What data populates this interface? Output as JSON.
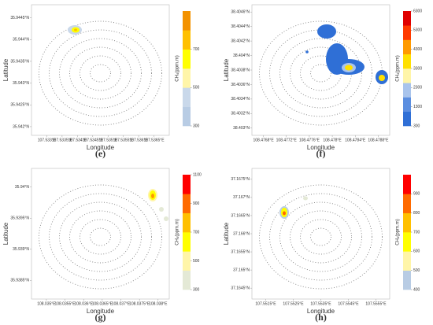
{
  "chart_data": [
    {
      "type": "map",
      "panel": "(e)",
      "xlabel": "Longitude",
      "ylabel": "Latitude",
      "colorbar_label": "CH₄(ppm.m)",
      "xlim": [
        107.5325,
        107.537
      ],
      "ylim": [
        35.9418,
        35.9448
      ],
      "xticks": [
        {
          "value": 107.533,
          "label": "107.533°E"
        },
        {
          "value": 107.5335,
          "label": "107.5335°E"
        },
        {
          "value": 107.534,
          "label": "107.534°E"
        },
        {
          "value": 107.5345,
          "label": "107.5345°E"
        },
        {
          "value": 107.535,
          "label": "107.535°E"
        },
        {
          "value": 107.5355,
          "label": "107.5355°E"
        },
        {
          "value": 107.536,
          "label": "107.536°E"
        },
        {
          "value": 107.5365,
          "label": "107.5365°E"
        }
      ],
      "yticks": [
        {
          "value": 35.9445,
          "label": "35.9445°N"
        },
        {
          "value": 35.944,
          "label": "35.944°N"
        },
        {
          "value": 35.9435,
          "label": "35.9435°N"
        },
        {
          "value": 35.943,
          "label": "35.943°N"
        },
        {
          "value": 35.9425,
          "label": "35.9425°N"
        },
        {
          "value": 35.942,
          "label": "35.942°N"
        }
      ],
      "clim": [
        300,
        900
      ],
      "cticks": [
        300,
        500,
        700
      ],
      "colors": [
        "#b8cce4",
        "#c9d8ea",
        "#fff5a8",
        "#ffff00",
        "#ffc000",
        "#f39200"
      ]
    },
    {
      "type": "map",
      "panel": "(f)",
      "xlabel": "Longitude",
      "ylabel": "Latitude",
      "colorbar_label": "CH₄(ppm.m)",
      "xlim": [
        108.4766,
        108.479
      ],
      "ylim": [
        38.4029,
        38.4047
      ],
      "xticks": [
        {
          "value": 108.4768,
          "label": "108.4768°E"
        },
        {
          "value": 108.4772,
          "label": "108.4772°E"
        },
        {
          "value": 108.4776,
          "label": "108.4776°E"
        },
        {
          "value": 108.478,
          "label": "108.478°E"
        },
        {
          "value": 108.4784,
          "label": "108.4784°E"
        },
        {
          "value": 108.4788,
          "label": "108.4788°E"
        }
      ],
      "yticks": [
        {
          "value": 38.4046,
          "label": "38.4046°N"
        },
        {
          "value": 38.4044,
          "label": "38.4044°N"
        },
        {
          "value": 38.4042,
          "label": "38.4042°N"
        },
        {
          "value": 38.404,
          "label": "38.404°N"
        },
        {
          "value": 38.4038,
          "label": "38.4038°N"
        },
        {
          "value": 38.4036,
          "label": "38.4036°N"
        },
        {
          "value": 38.4034,
          "label": "38.4034°N"
        },
        {
          "value": 38.4032,
          "label": "38.4032°N"
        },
        {
          "value": 38.403,
          "label": "38.403°N"
        }
      ],
      "clim": [
        300,
        6300
      ],
      "cticks": [
        300,
        1300,
        2300,
        3300,
        4300,
        5300,
        6300
      ],
      "colors": [
        "#2f6fd6",
        "#5b8ee0",
        "#a9c4ec",
        "#fff5a8",
        "#ffe000",
        "#ff9a00",
        "#ff3a00",
        "#e00000"
      ]
    },
    {
      "type": "map",
      "panel": "(g)",
      "xlabel": "Longitude",
      "ylabel": "Latitude",
      "colorbar_label": "CH₄(ppm.m)",
      "xlim": [
        108.0346,
        108.0383
      ],
      "ylim": [
        35.9382,
        35.9403
      ],
      "xticks": [
        {
          "value": 108.035,
          "label": "108.035°E"
        },
        {
          "value": 108.0355,
          "label": "108.0355°E"
        },
        {
          "value": 108.036,
          "label": "108.036°E"
        },
        {
          "value": 108.0365,
          "label": "108.0365°E"
        },
        {
          "value": 108.037,
          "label": "108.037°E"
        },
        {
          "value": 108.0375,
          "label": "108.0375°E"
        },
        {
          "value": 108.038,
          "label": "108.038°E"
        }
      ],
      "yticks": [
        {
          "value": 35.94,
          "label": "35.94°N"
        },
        {
          "value": 35.9395,
          "label": "35.9395°N"
        },
        {
          "value": 35.939,
          "label": "35.939°N"
        },
        {
          "value": 35.9385,
          "label": "35.9385°N"
        }
      ],
      "clim": [
        300,
        1100
      ],
      "cticks": [
        300,
        500,
        700,
        900,
        1100
      ],
      "colors": [
        "#e4e9d6",
        "#fff5a8",
        "#ffff00",
        "#ffc000",
        "#ff6a00",
        "#ff0000"
      ]
    },
    {
      "type": "map",
      "panel": "(h)",
      "xlabel": "Longitude",
      "ylabel": "Latitude",
      "colorbar_label": "CH₄(ppm.m)",
      "xlim": [
        107.551,
        107.556
      ],
      "ylim": [
        37.1642,
        37.1678
      ],
      "xticks": [
        {
          "value": 107.5515,
          "label": "107.5515°E"
        },
        {
          "value": 107.5525,
          "label": "107.5525°E"
        },
        {
          "value": 107.5535,
          "label": "107.5535°E"
        },
        {
          "value": 107.5545,
          "label": "107.5545°E"
        },
        {
          "value": 107.5555,
          "label": "107.5555°E"
        }
      ],
      "yticks": [
        {
          "value": 37.1675,
          "label": "37.1675°N"
        },
        {
          "value": 37.167,
          "label": "37.167°N"
        },
        {
          "value": 37.1665,
          "label": "37.1665°N"
        },
        {
          "value": 37.166,
          "label": "37.166°N"
        },
        {
          "value": 37.1655,
          "label": "37.1655°N"
        },
        {
          "value": 37.165,
          "label": "37.165°N"
        },
        {
          "value": 37.1645,
          "label": "37.1645°N"
        }
      ],
      "clim": [
        400,
        1000
      ],
      "cticks": [
        400,
        500,
        600,
        700,
        800,
        900
      ],
      "colors": [
        "#b8cce4",
        "#fff5a8",
        "#ffff00",
        "#ffc000",
        "#ff6a00",
        "#ff0000"
      ]
    }
  ]
}
